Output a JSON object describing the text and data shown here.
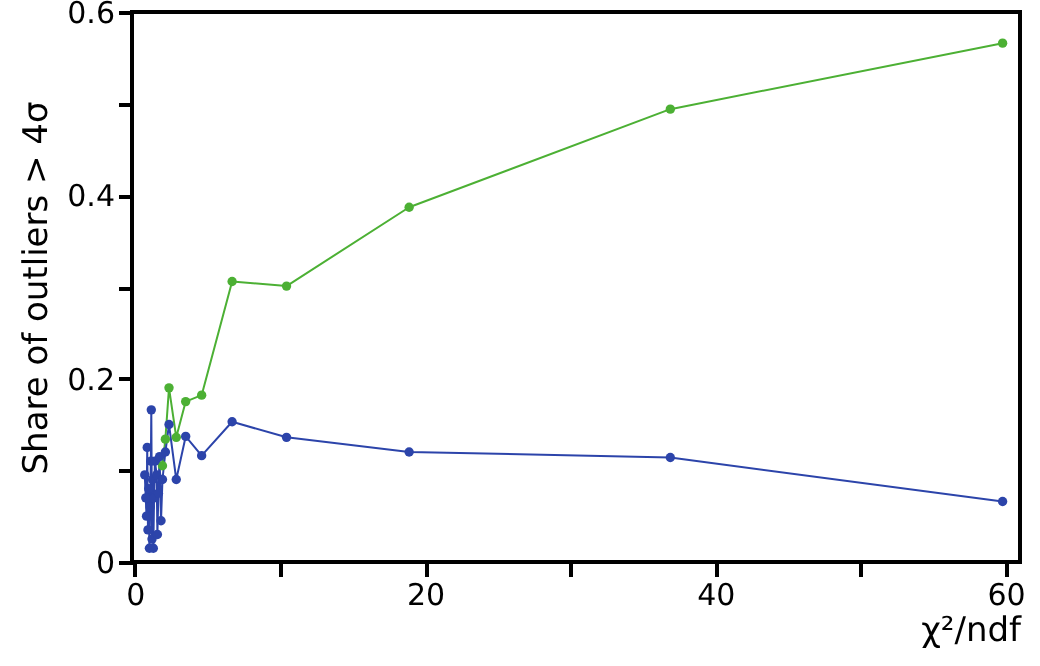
{
  "chart_data": {
    "type": "line",
    "xlabel": "χ²/ndf",
    "ylabel": "Share of outliers > 4σ",
    "xlim": [
      -0.2,
      61
    ],
    "ylim": [
      0,
      0.6
    ],
    "xticks": [
      0,
      {
        "value": 10,
        "label": null
      },
      20,
      {
        "value": 30,
        "label": null
      },
      40,
      {
        "value": 50,
        "label": null
      },
      60
    ],
    "yticks": [
      0,
      {
        "value": 0.1,
        "label": null
      },
      0.2,
      {
        "value": 0.3,
        "label": null
      },
      0.4,
      {
        "value": 0.5,
        "label": null
      },
      0.6
    ],
    "grid": false,
    "marker": "circle",
    "line_style": "solid",
    "series": [
      {
        "color": "#4cb034",
        "x": [
          1.9,
          2.1,
          2.35,
          2.85,
          3.5,
          4.6,
          6.7,
          10.45,
          18.9,
          36.9,
          59.8
        ],
        "values": [
          0.105,
          0.134,
          0.19,
          0.136,
          0.175,
          0.182,
          0.306,
          0.301,
          0.387,
          0.494,
          0.566
        ]
      },
      {
        "color": "#2c44aa",
        "x": [
          0.68,
          0.75,
          0.8,
          0.85,
          0.9,
          0.95,
          1.0,
          1.05,
          1.1,
          1.13,
          1.18,
          1.22,
          1.27,
          1.32,
          1.38,
          1.5,
          1.55,
          1.62,
          1.7,
          1.8,
          1.9,
          2.1,
          2.35,
          2.85,
          3.5,
          4.6,
          6.7,
          10.45,
          18.9,
          36.9,
          59.8
        ],
        "values": [
          0.095,
          0.07,
          0.05,
          0.125,
          0.035,
          0.08,
          0.015,
          0.06,
          0.11,
          0.166,
          0.025,
          0.09,
          0.015,
          0.07,
          0.11,
          0.095,
          0.03,
          0.075,
          0.115,
          0.045,
          0.09,
          0.12,
          0.15,
          0.09,
          0.137,
          0.116,
          0.153,
          0.136,
          0.12,
          0.114,
          0.066
        ]
      }
    ]
  }
}
